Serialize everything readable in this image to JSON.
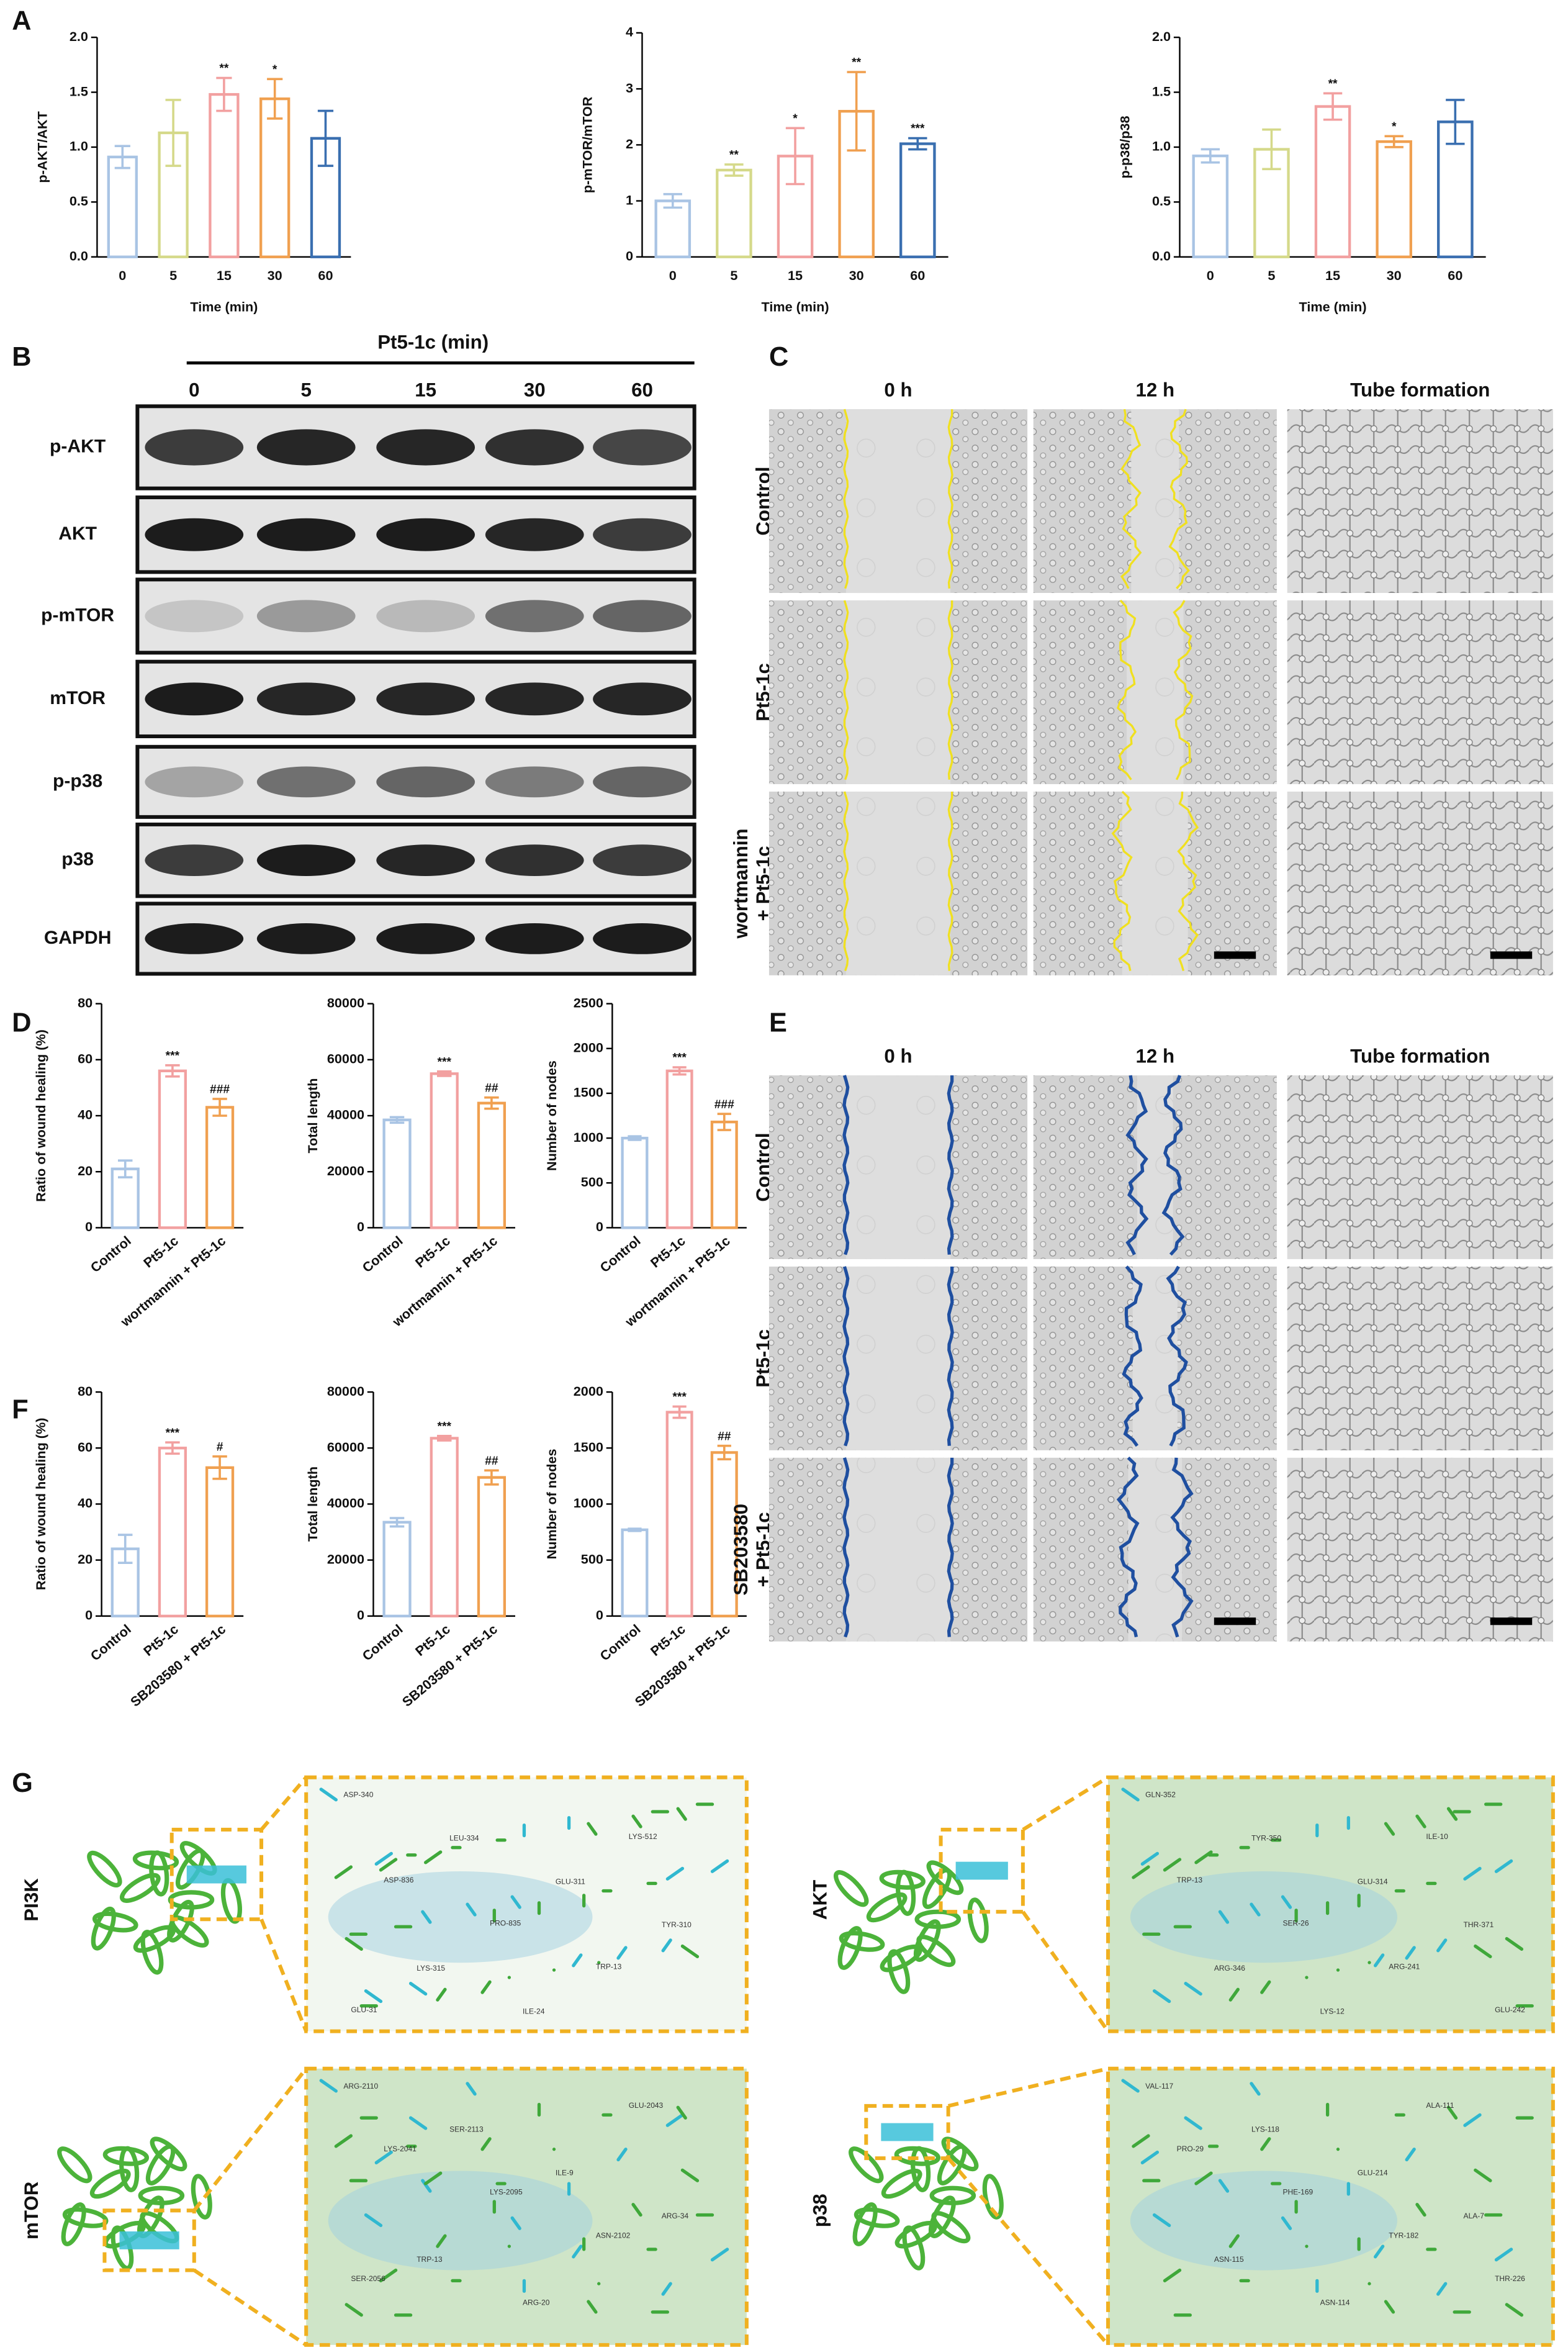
{
  "panel_labels": [
    "A",
    "B",
    "C",
    "D",
    "E",
    "F",
    "G"
  ],
  "chart_data": [
    {
      "type": "bar",
      "ylabel": "p-AKT/AKT",
      "xlabel": "Time (min)",
      "categories": [
        "0",
        "5",
        "15",
        "30",
        "60"
      ],
      "values": [
        0.91,
        1.13,
        1.48,
        1.44,
        1.08
      ],
      "errors": [
        0.1,
        0.3,
        0.15,
        0.18,
        0.25
      ],
      "significance": [
        null,
        null,
        "**",
        "*",
        null
      ],
      "colors": [
        "#a9c4e4",
        "#d5d98a",
        "#f2a0a0",
        "#f0a050",
        "#3a6fb0"
      ],
      "ylim": [
        0,
        2
      ],
      "yticks": [
        {
          "value": 0,
          "label": "0.0"
        },
        {
          "value": 0.5,
          "label": "0.5"
        },
        {
          "value": 1,
          "label": "1.0"
        },
        {
          "value": 1.5,
          "label": "1.5"
        },
        {
          "value": 2,
          "label": "2.0"
        }
      ]
    },
    {
      "type": "bar",
      "ylabel": "p-mTOR/mTOR",
      "xlabel": "Time (min)",
      "categories": [
        "0",
        "5",
        "15",
        "30",
        "60"
      ],
      "values": [
        1.0,
        1.55,
        1.8,
        2.6,
        2.02
      ],
      "errors": [
        0.12,
        0.1,
        0.5,
        0.7,
        0.1
      ],
      "significance": [
        null,
        "**",
        "*",
        "**",
        "***"
      ],
      "colors": [
        "#a9c4e4",
        "#d5d98a",
        "#f2a0a0",
        "#f0a050",
        "#3a6fb0"
      ],
      "ylim": [
        0,
        4
      ],
      "yticks": [
        0,
        1,
        2,
        3,
        4
      ]
    },
    {
      "type": "bar",
      "ylabel": "p-p38/p38",
      "xlabel": "Time (min)",
      "categories": [
        "0",
        "5",
        "15",
        "30",
        "60"
      ],
      "values": [
        0.92,
        0.98,
        1.37,
        1.05,
        1.23
      ],
      "errors": [
        0.06,
        0.18,
        0.12,
        0.05,
        0.2
      ],
      "significance": [
        null,
        null,
        "**",
        "*",
        null
      ],
      "colors": [
        "#a9c4e4",
        "#d5d98a",
        "#f2a0a0",
        "#f0a050",
        "#3a6fb0"
      ],
      "ylim": [
        0,
        2
      ],
      "yticks": [
        {
          "value": 0,
          "label": "0.0"
        },
        {
          "value": 0.5,
          "label": "0.5"
        },
        {
          "value": 1,
          "label": "1.0"
        },
        {
          "value": 1.5,
          "label": "1.5"
        },
        {
          "value": 2,
          "label": "2.0"
        }
      ]
    },
    {
      "type": "bar",
      "ylabel": "Ratio of wound healing (%)",
      "categories": [
        "Control",
        "Pt5-1c",
        "wortmannin + Pt5-1c"
      ],
      "values": [
        21,
        56,
        43
      ],
      "errors": [
        3,
        2,
        3
      ],
      "significance": [
        null,
        "***",
        "###"
      ],
      "colors": [
        "#a9c4e4",
        "#f2a0a0",
        "#f0a050"
      ],
      "ylim": [
        0,
        80
      ],
      "yticks": [
        0,
        20,
        40,
        60,
        80
      ]
    },
    {
      "type": "bar",
      "ylabel": "Total length",
      "categories": [
        "Control",
        "Pt5-1c",
        "wortmannin + Pt5-1c"
      ],
      "values": [
        38500,
        55000,
        44500
      ],
      "errors": [
        1000,
        800,
        2000
      ],
      "significance": [
        null,
        "***",
        "##"
      ],
      "colors": [
        "#a9c4e4",
        "#f2a0a0",
        "#f0a050"
      ],
      "ylim": [
        0,
        80000
      ],
      "yticks": [
        0,
        20000,
        40000,
        60000,
        80000
      ]
    },
    {
      "type": "bar",
      "ylabel": "Number of nodes",
      "categories": [
        "Control",
        "Pt5-1c",
        "wortmannin + Pt5-1c"
      ],
      "values": [
        1000,
        1750,
        1180
      ],
      "errors": [
        20,
        40,
        90
      ],
      "significance": [
        null,
        "***",
        "###"
      ],
      "colors": [
        "#a9c4e4",
        "#f2a0a0",
        "#f0a050"
      ],
      "ylim": [
        0,
        2500
      ],
      "yticks": [
        0,
        500,
        1000,
        1500,
        2000,
        2500
      ]
    },
    {
      "type": "bar",
      "ylabel": "Ratio of wound healing (%)",
      "categories": [
        "Control",
        "Pt5-1c",
        "SB203580 + Pt5-1c"
      ],
      "values": [
        24,
        60,
        53
      ],
      "errors": [
        5,
        2,
        4
      ],
      "significance": [
        null,
        "***",
        "#"
      ],
      "colors": [
        "#a9c4e4",
        "#f2a0a0",
        "#f0a050"
      ],
      "ylim": [
        0,
        80
      ],
      "yticks": [
        0,
        20,
        40,
        60,
        80
      ]
    },
    {
      "type": "bar",
      "ylabel": "Total length",
      "categories": [
        "Control",
        "Pt5-1c",
        "SB203580 + Pt5-1c"
      ],
      "values": [
        33500,
        63500,
        49500
      ],
      "errors": [
        1500,
        800,
        2500
      ],
      "significance": [
        null,
        "***",
        "##"
      ],
      "colors": [
        "#a9c4e4",
        "#f2a0a0",
        "#f0a050"
      ],
      "ylim": [
        0,
        80000
      ],
      "yticks": [
        0,
        20000,
        40000,
        60000,
        80000
      ]
    },
    {
      "type": "bar",
      "ylabel": "Number of nodes",
      "categories": [
        "Control",
        "Pt5-1c",
        "SB203580 + Pt5-1c"
      ],
      "values": [
        770,
        1820,
        1460
      ],
      "errors": [
        10,
        50,
        60
      ],
      "significance": [
        null,
        "***",
        "##"
      ],
      "colors": [
        "#a9c4e4",
        "#f2a0a0",
        "#f0a050"
      ],
      "ylim": [
        0,
        2000
      ],
      "yticks": [
        0,
        500,
        1000,
        1500,
        2000
      ]
    }
  ],
  "blot": {
    "title": "Pt5-1c (min)",
    "lanes": [
      "0",
      "5",
      "15",
      "30",
      "60"
    ],
    "rows": [
      "p-AKT",
      "AKT",
      "p-mTOR",
      "mTOR",
      "p-p38",
      "p38",
      "GAPDH"
    ]
  },
  "wound_c": {
    "columns": [
      "0 h",
      "12 h",
      "Tube formation"
    ],
    "rows": [
      [
        "Control"
      ],
      [
        "Pt5-1c"
      ],
      [
        "wortmannin",
        "+ Pt5-1c"
      ]
    ],
    "line_color": "#f0e020"
  },
  "wound_e": {
    "columns": [
      "0 h",
      "12 h",
      "Tube formation"
    ],
    "rows": [
      [
        "Control"
      ],
      [
        "Pt5-1c"
      ],
      [
        "SB203580",
        "+ Pt5-1c"
      ]
    ],
    "line_color": "#1f4fa0"
  },
  "docking": [
    {
      "name": "PI3K",
      "residues": [
        "ASP-340",
        "LEU-334",
        "GLU-311",
        "TYR-310",
        "LYS-315",
        "ILE-24",
        "LYS-512",
        "ASP-836",
        "PRO-835",
        "TRP-13",
        "GLU-31"
      ]
    },
    {
      "name": "AKT",
      "residues": [
        "GLN-352",
        "TYR-350",
        "GLU-314",
        "THR-371",
        "ARG-346",
        "LYS-12",
        "ILE-10",
        "TRP-13",
        "SER-26",
        "ARG-241",
        "GLU-242"
      ]
    },
    {
      "name": "mTOR",
      "residues": [
        "ARG-2110",
        "SER-2113",
        "ILE-9",
        "ARG-34",
        "TRP-13",
        "ARG-20",
        "GLU-2043",
        "LYS-2041",
        "LYS-2095",
        "ASN-2102",
        "SER-2056"
      ]
    },
    {
      "name": "p38",
      "residues": [
        "VAL-117",
        "LYS-118",
        "GLU-214",
        "ALA-7",
        "ASN-115",
        "ASN-114",
        "ALA-111",
        "PRO-29",
        "PHE-169",
        "TYR-182",
        "THR-226"
      ]
    }
  ]
}
